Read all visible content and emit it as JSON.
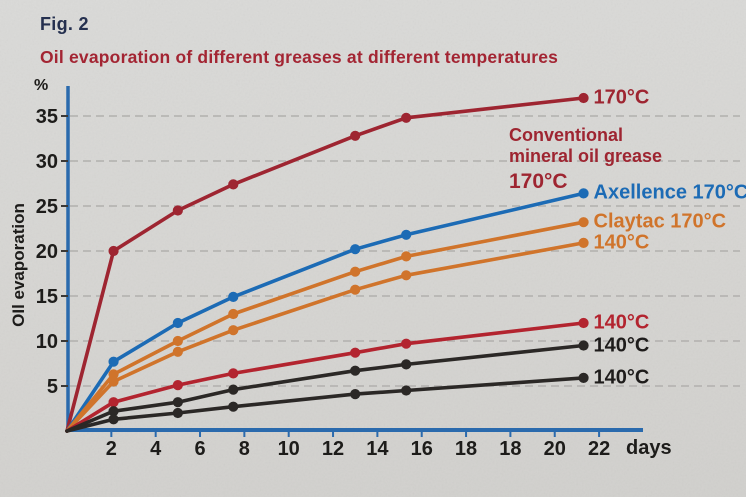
{
  "figure": {
    "fig_label": "Fig. 2",
    "title": "Oil evaporation of different greases at different temperatures",
    "y_unit_label": "%",
    "y_axis_label": "OIl evaporation",
    "x_unit_label": "days"
  },
  "annotations": {
    "conventional": {
      "line1": "Conventional",
      "line2": "mineral oil grease",
      "line3": "170°C"
    }
  },
  "colors": {
    "background": "#d6d5d2",
    "axis_blue": "#2a6aad",
    "gridline": "#b1b0ad",
    "tick_text": "#1d1c1a",
    "title_red": "#a32533",
    "fig_navy": "#25304f",
    "dark_red": "#9e2531",
    "bright_red": "#b3242f",
    "blue": "#1c6bb5",
    "orange": "#d0742b",
    "black": "#2b2826"
  },
  "chart_data": {
    "type": "line",
    "title": "Oil evaporation of different greases at different temperatures",
    "xlabel": "days",
    "ylabel": "OIl evaporation (%)",
    "xlim": [
      0,
      28
    ],
    "ylim": [
      0,
      38.5
    ],
    "grid": "horizontal-dashed",
    "legend_position": "right-of-line-ends",
    "x_nominal_days": [
      0,
      2,
      5,
      7.5,
      13,
      15,
      21
    ],
    "x_plot_days": [
      0,
      2.1,
      5,
      7.5,
      13,
      15.3,
      23.3
    ],
    "x_tick_positions": [
      2,
      4,
      6,
      8,
      10,
      12,
      14,
      16,
      18,
      20,
      22,
      24
    ],
    "x_tick_labels": [
      "2",
      "4",
      "6",
      "8",
      "10",
      "12",
      "14",
      "16",
      "18",
      "18",
      "20",
      "22"
    ],
    "x_axis_note": "printed axis repeats the label 18 twice (typo in original)",
    "y_ticks": [
      5,
      10,
      15,
      20,
      25,
      30,
      35
    ],
    "series": [
      {
        "name": "Conventional mineral oil grease 170°C",
        "end_label": "170°C",
        "color": "#9e2531",
        "values": [
          0,
          20.0,
          24.5,
          27.4,
          32.8,
          34.8,
          37.0
        ]
      },
      {
        "name": "Axellence 170°C",
        "end_label": "Axellence 170°C",
        "color": "#1c6bb5",
        "values": [
          0,
          7.7,
          12.0,
          14.9,
          20.2,
          21.8,
          26.4
        ]
      },
      {
        "name": "Claytac 170°C",
        "end_label": "Claytac 170°C",
        "color": "#d0742b",
        "values": [
          0,
          6.3,
          10.0,
          13.0,
          17.7,
          19.4,
          23.2
        ]
      },
      {
        "name": "140°C (orange series)",
        "end_label": "140°C",
        "color": "#d0742b",
        "values": [
          0,
          5.5,
          8.8,
          11.2,
          15.7,
          17.3,
          20.9
        ]
      },
      {
        "name": "140°C (red series)",
        "end_label": "140°C",
        "color": "#b3242f",
        "values": [
          0,
          3.2,
          5.1,
          6.4,
          8.7,
          9.7,
          12.0
        ]
      },
      {
        "name": "140°C (dark series, upper)",
        "end_label": "140°C",
        "color": "#2b2826",
        "label_color": "#1e1c1b",
        "values": [
          0,
          2.2,
          3.2,
          4.6,
          6.7,
          7.4,
          9.5
        ]
      },
      {
        "name": "140°C (dark series, lower)",
        "end_label": "140°C",
        "color": "#2b2826",
        "label_color": "#1e1c1b",
        "values": [
          0,
          1.3,
          2.0,
          2.7,
          4.1,
          4.5,
          5.9
        ]
      }
    ]
  }
}
